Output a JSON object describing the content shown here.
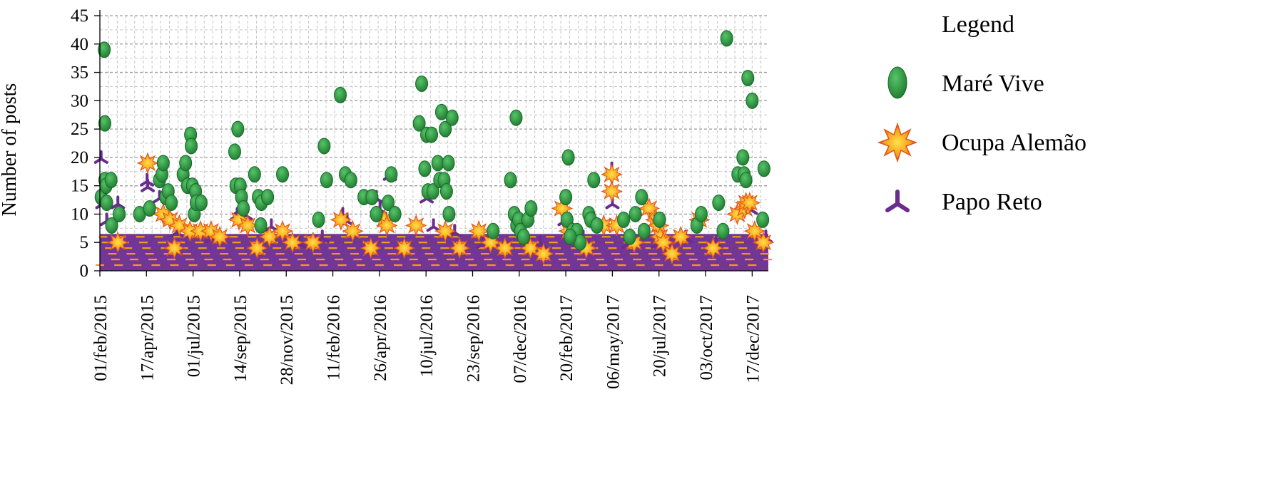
{
  "chart_data": {
    "type": "scatter",
    "title": "",
    "ylabel": "Number of posts",
    "xlabel": "",
    "ylim": [
      0,
      45
    ],
    "yticks": [
      0,
      5,
      10,
      15,
      20,
      25,
      30,
      35,
      40,
      45
    ],
    "xlim": [
      "2015-02-01",
      "2018-01-12"
    ],
    "xticks": [
      "01/feb/2015",
      "17/apr/2015",
      "01/jul/2015",
      "14/sep/2015",
      "28/nov/2015",
      "11/feb/2016",
      "26/apr/2016",
      "10/jul/2016",
      "23/sep/2016",
      "07/dec/2016",
      "20/feb/2017",
      "06/may/2017",
      "20/jul/2017",
      "03/oct/2017",
      "17/dec/2017"
    ],
    "grid": true,
    "legend": {
      "title": "Legend",
      "position": "right"
    },
    "series": [
      {
        "name": "Maré Vive",
        "marker": "ellipse",
        "color": "#2e9a3c",
        "points": [
          [
            "2015-02-03",
            13
          ],
          [
            "2015-02-08",
            39
          ],
          [
            "2015-02-09",
            26
          ],
          [
            "2015-02-09",
            16
          ],
          [
            "2015-02-11",
            15
          ],
          [
            "2015-02-12",
            12
          ],
          [
            "2015-02-19",
            16
          ],
          [
            "2015-02-20",
            8
          ],
          [
            "2015-03-04",
            10
          ],
          [
            "2015-04-06",
            10
          ],
          [
            "2015-04-22",
            11
          ],
          [
            "2015-05-08",
            16
          ],
          [
            "2015-05-12",
            17
          ],
          [
            "2015-05-14",
            19
          ],
          [
            "2015-05-18",
            13
          ],
          [
            "2015-05-22",
            14
          ],
          [
            "2015-05-27",
            12
          ],
          [
            "2015-06-15",
            17
          ],
          [
            "2015-06-19",
            19
          ],
          [
            "2015-06-22",
            15
          ],
          [
            "2015-06-27",
            24
          ],
          [
            "2015-06-28",
            22
          ],
          [
            "2015-06-30",
            15
          ],
          [
            "2015-07-03",
            10
          ],
          [
            "2015-07-05",
            14
          ],
          [
            "2015-07-06",
            12
          ],
          [
            "2015-07-14",
            12
          ],
          [
            "2015-09-06",
            21
          ],
          [
            "2015-09-08",
            15
          ],
          [
            "2015-09-11",
            25
          ],
          [
            "2015-09-15",
            15
          ],
          [
            "2015-09-17",
            13
          ],
          [
            "2015-09-20",
            11
          ],
          [
            "2015-10-08",
            17
          ],
          [
            "2015-10-14",
            13
          ],
          [
            "2015-10-19",
            12
          ],
          [
            "2015-10-29",
            13
          ],
          [
            "2015-10-18",
            8
          ],
          [
            "2015-11-22",
            17
          ],
          [
            "2016-01-19",
            9
          ],
          [
            "2016-01-28",
            22
          ],
          [
            "2016-02-01",
            16
          ],
          [
            "2016-02-23",
            31
          ],
          [
            "2016-03-02",
            17
          ],
          [
            "2016-03-11",
            16
          ],
          [
            "2016-04-01",
            13
          ],
          [
            "2016-04-14",
            13
          ],
          [
            "2016-04-21",
            10
          ],
          [
            "2016-05-10",
            12
          ],
          [
            "2016-05-15",
            17
          ],
          [
            "2016-05-21",
            10
          ],
          [
            "2016-06-29",
            26
          ],
          [
            "2016-07-03",
            33
          ],
          [
            "2016-07-08",
            18
          ],
          [
            "2016-07-11",
            24
          ],
          [
            "2016-07-13",
            14
          ],
          [
            "2016-07-19",
            24
          ],
          [
            "2016-07-21",
            14
          ],
          [
            "2016-07-29",
            19
          ],
          [
            "2016-08-01",
            16
          ],
          [
            "2016-08-04",
            28
          ],
          [
            "2016-08-08",
            16
          ],
          [
            "2016-08-10",
            25
          ],
          [
            "2016-08-12",
            14
          ],
          [
            "2016-08-15",
            19
          ],
          [
            "2016-08-16",
            10
          ],
          [
            "2016-08-21",
            27
          ],
          [
            "2016-10-26",
            7
          ],
          [
            "2016-11-23",
            16
          ],
          [
            "2016-12-02",
            27
          ],
          [
            "2016-11-29",
            10
          ],
          [
            "2016-12-03",
            8
          ],
          [
            "2016-12-06",
            9
          ],
          [
            "2016-12-09",
            7
          ],
          [
            "2016-12-21",
            9
          ],
          [
            "2016-12-26",
            11
          ],
          [
            "2017-02-20",
            13
          ],
          [
            "2017-02-22",
            9
          ],
          [
            "2017-02-24",
            20
          ],
          [
            "2017-03-03",
            7
          ],
          [
            "2017-03-10",
            7
          ],
          [
            "2017-03-15",
            5
          ],
          [
            "2017-03-29",
            10
          ],
          [
            "2017-04-01",
            9
          ],
          [
            "2017-04-06",
            16
          ],
          [
            "2017-04-11",
            8
          ],
          [
            "2017-05-24",
            9
          ],
          [
            "2017-06-03",
            6
          ],
          [
            "2017-06-12",
            10
          ],
          [
            "2017-06-22",
            13
          ],
          [
            "2017-06-26",
            7
          ],
          [
            "2017-07-21",
            9
          ],
          [
            "2017-09-19",
            8
          ],
          [
            "2017-09-26",
            10
          ],
          [
            "2017-10-24",
            12
          ],
          [
            "2017-10-31",
            7
          ],
          [
            "2017-11-06",
            41
          ],
          [
            "2017-11-24",
            17
          ],
          [
            "2017-12-02",
            20
          ],
          [
            "2017-12-04",
            17
          ],
          [
            "2017-12-07",
            16
          ],
          [
            "2017-12-10",
            34
          ],
          [
            "2017-12-17",
            30
          ],
          [
            "2018-01-05",
            18
          ],
          [
            "2018-01-03",
            9
          ],
          [
            "2016-12-14",
            6
          ],
          [
            "2017-02-27",
            6
          ]
        ]
      },
      {
        "name": "Ocupa Alemão",
        "marker": "star",
        "color": "#f28a1c",
        "points": [
          [
            "2015-04-19",
            19
          ],
          [
            "2015-05-14",
            10
          ],
          [
            "2015-05-25",
            9
          ],
          [
            "2015-06-09",
            8
          ],
          [
            "2015-06-26",
            7
          ],
          [
            "2015-07-13",
            7
          ],
          [
            "2015-07-30",
            7
          ],
          [
            "2015-08-13",
            6
          ],
          [
            "2015-09-13",
            9
          ],
          [
            "2015-09-27",
            8
          ],
          [
            "2015-11-01",
            6
          ],
          [
            "2015-11-22",
            7
          ],
          [
            "2015-12-08",
            5
          ],
          [
            "2016-02-24",
            9
          ],
          [
            "2016-03-14",
            7
          ],
          [
            "2016-05-04",
            9
          ],
          [
            "2016-05-08",
            8
          ],
          [
            "2016-06-24",
            8
          ],
          [
            "2016-08-10",
            7
          ],
          [
            "2016-10-03",
            7
          ],
          [
            "2016-10-22",
            5
          ],
          [
            "2016-11-14",
            4
          ],
          [
            "2016-12-25",
            4
          ],
          [
            "2017-02-14",
            11
          ],
          [
            "2017-02-25",
            7
          ],
          [
            "2017-04-22",
            8
          ],
          [
            "2017-05-05",
            17
          ],
          [
            "2017-05-05",
            14
          ],
          [
            "2017-05-13",
            8
          ],
          [
            "2017-07-04",
            11
          ],
          [
            "2017-07-15",
            9
          ],
          [
            "2017-07-19",
            8
          ],
          [
            "2017-07-22",
            6
          ],
          [
            "2017-07-27",
            5
          ],
          [
            "2017-08-24",
            6
          ],
          [
            "2017-09-23",
            9
          ],
          [
            "2017-11-23",
            10
          ],
          [
            "2017-12-05",
            11
          ],
          [
            "2017-12-07",
            12
          ],
          [
            "2017-12-13",
            12
          ],
          [
            "2017-12-21",
            7
          ],
          [
            "2018-01-04",
            5
          ],
          [
            "2015-03-02",
            5
          ],
          [
            "2015-06-01",
            4
          ],
          [
            "2015-10-12",
            4
          ],
          [
            "2016-01-10",
            5
          ],
          [
            "2016-04-12",
            4
          ],
          [
            "2016-06-05",
            4
          ],
          [
            "2016-09-02",
            4
          ],
          [
            "2017-01-15",
            3
          ],
          [
            "2017-03-25",
            4
          ],
          [
            "2017-06-10",
            5
          ],
          [
            "2017-08-10",
            3
          ],
          [
            "2017-10-15",
            4
          ]
        ]
      },
      {
        "name": "Papo Reto",
        "marker": "tripod",
        "color": "#6a2c8e",
        "points": [
          [
            "2015-02-03",
            20
          ],
          [
            "2015-02-05",
            12
          ],
          [
            "2015-02-12",
            9
          ],
          [
            "2015-03-02",
            12
          ],
          [
            "2015-04-18",
            16
          ],
          [
            "2015-04-19",
            15
          ],
          [
            "2015-04-20",
            11
          ],
          [
            "2015-05-08",
            13
          ],
          [
            "2015-09-10",
            10
          ],
          [
            "2015-09-16",
            11
          ],
          [
            "2015-09-24",
            10
          ],
          [
            "2015-11-04",
            8
          ],
          [
            "2016-02-27",
            10
          ],
          [
            "2016-03-05",
            9
          ],
          [
            "2016-04-21",
            13
          ],
          [
            "2016-04-27",
            11
          ],
          [
            "2016-05-13",
            17
          ],
          [
            "2016-07-11",
            13
          ],
          [
            "2016-07-22",
            8
          ],
          [
            "2016-12-22",
            5
          ],
          [
            "2017-02-18",
            9
          ],
          [
            "2017-05-05",
            18
          ],
          [
            "2017-05-06",
            12
          ],
          [
            "2017-07-18",
            5
          ],
          [
            "2017-12-15",
            11
          ],
          [
            "2015-06-05",
            7
          ],
          [
            "2015-08-01",
            6
          ],
          [
            "2015-12-20",
            5
          ],
          [
            "2016-01-25",
            6
          ],
          [
            "2016-08-25",
            7
          ],
          [
            "2016-10-10",
            5
          ],
          [
            "2017-01-10",
            5
          ],
          [
            "2017-03-20",
            6
          ],
          [
            "2017-06-01",
            5
          ],
          [
            "2017-09-01",
            6
          ],
          [
            "2017-10-20",
            5
          ],
          [
            "2018-01-08",
            6
          ]
        ]
      }
    ]
  }
}
